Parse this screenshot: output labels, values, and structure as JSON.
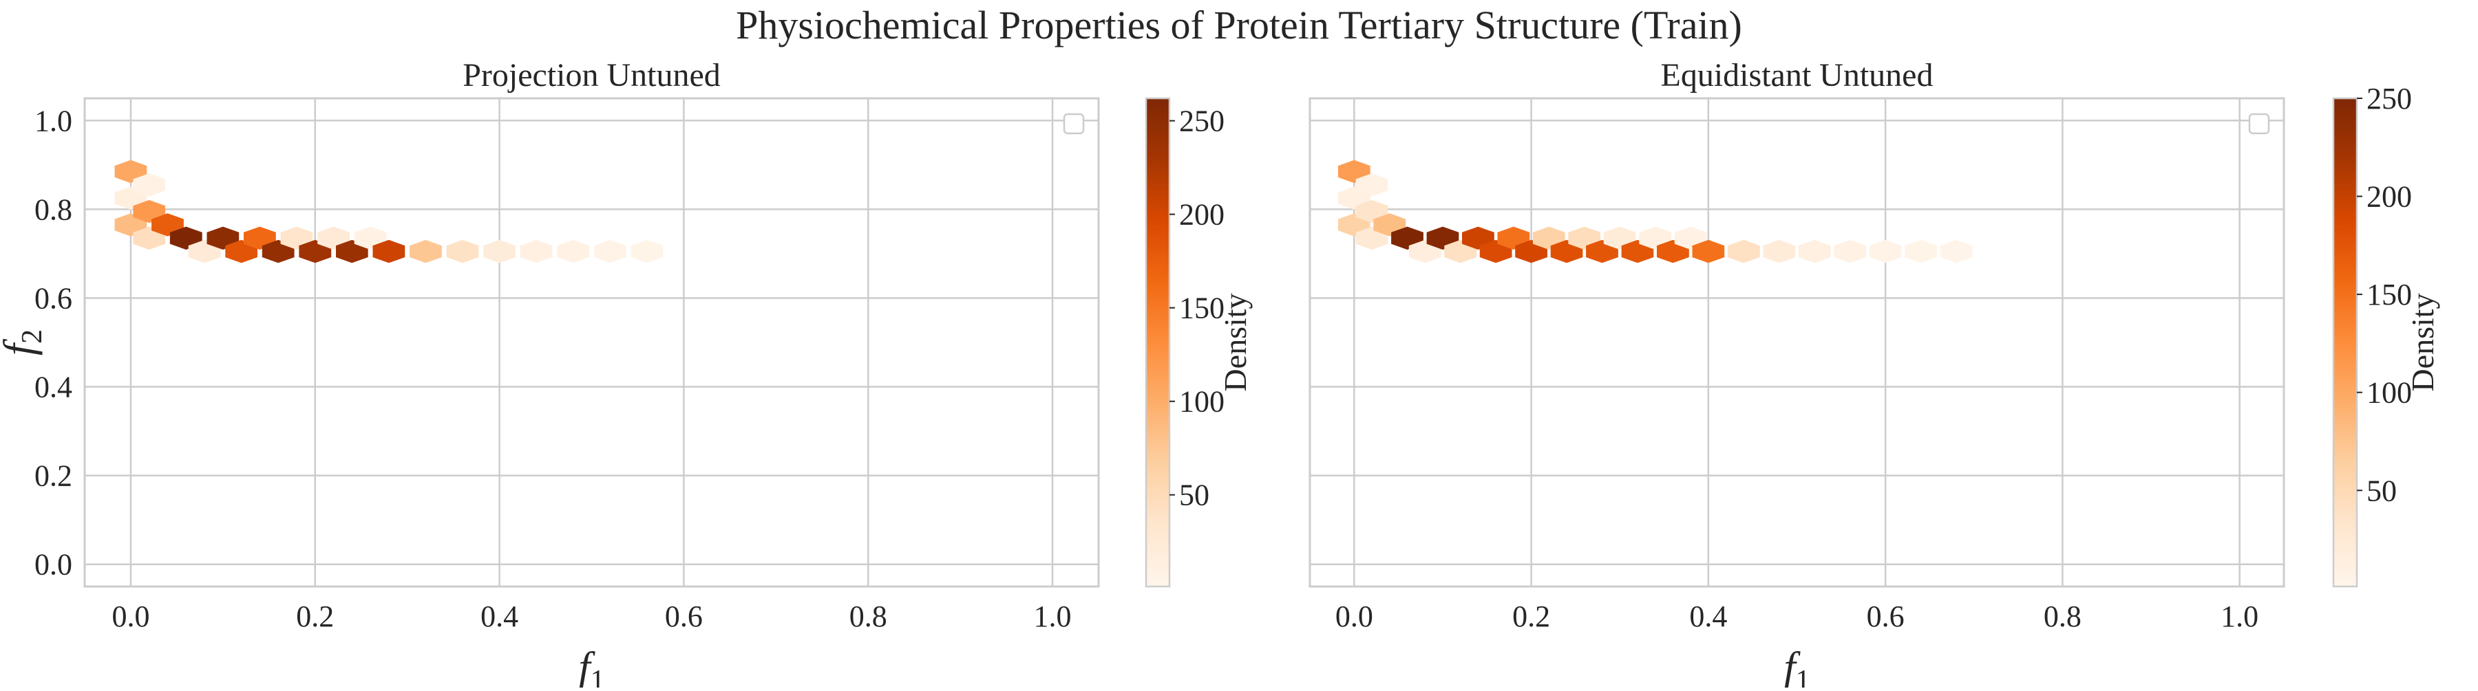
{
  "figure": {
    "title": "Physiochemical Properties of Protein Tertiary Structure (Train)"
  },
  "chart_data": [
    {
      "type": "heatmap",
      "subtype": "hexbin",
      "title": "Projection Untuned",
      "xlabel": "f1",
      "ylabel": "f2",
      "xlim": [
        -0.05,
        1.05
      ],
      "ylim": [
        -0.05,
        1.05
      ],
      "xticks": [
        "0.0",
        "0.2",
        "0.4",
        "0.6",
        "0.8",
        "1.0"
      ],
      "yticks": [
        "0.0",
        "0.2",
        "0.4",
        "0.6",
        "0.8",
        "1.0"
      ],
      "grid": true,
      "legend": {
        "placement": "upper-right",
        "entries": []
      },
      "colormap": "Oranges",
      "colorbar": {
        "label": "Density",
        "range": [
          1,
          262
        ],
        "ticks": [
          "50",
          "100",
          "150",
          "200",
          "250"
        ]
      },
      "bins": [
        {
          "x": 0.0,
          "y": 0.885,
          "v": 105
        },
        {
          "x": 0.0,
          "y": 0.825,
          "v": 15
        },
        {
          "x": 0.0,
          "y": 0.765,
          "v": 85
        },
        {
          "x": 0.02,
          "y": 0.855,
          "v": 8
        },
        {
          "x": 0.02,
          "y": 0.795,
          "v": 120
        },
        {
          "x": 0.02,
          "y": 0.735,
          "v": 45
        },
        {
          "x": 0.04,
          "y": 0.765,
          "v": 175
        },
        {
          "x": 0.06,
          "y": 0.735,
          "v": 262
        },
        {
          "x": 0.08,
          "y": 0.705,
          "v": 25
        },
        {
          "x": 0.1,
          "y": 0.735,
          "v": 250
        },
        {
          "x": 0.12,
          "y": 0.705,
          "v": 185
        },
        {
          "x": 0.14,
          "y": 0.735,
          "v": 165
        },
        {
          "x": 0.16,
          "y": 0.705,
          "v": 245
        },
        {
          "x": 0.18,
          "y": 0.735,
          "v": 35
        },
        {
          "x": 0.2,
          "y": 0.705,
          "v": 235
        },
        {
          "x": 0.22,
          "y": 0.735,
          "v": 25
        },
        {
          "x": 0.24,
          "y": 0.705,
          "v": 240
        },
        {
          "x": 0.26,
          "y": 0.735,
          "v": 8
        },
        {
          "x": 0.28,
          "y": 0.705,
          "v": 205
        },
        {
          "x": 0.32,
          "y": 0.705,
          "v": 75
        },
        {
          "x": 0.36,
          "y": 0.705,
          "v": 40
        },
        {
          "x": 0.4,
          "y": 0.705,
          "v": 20
        },
        {
          "x": 0.44,
          "y": 0.705,
          "v": 12
        },
        {
          "x": 0.48,
          "y": 0.705,
          "v": 8
        },
        {
          "x": 0.52,
          "y": 0.705,
          "v": 6
        },
        {
          "x": 0.56,
          "y": 0.705,
          "v": 4
        }
      ]
    },
    {
      "type": "heatmap",
      "subtype": "hexbin",
      "title": "Equidistant Untuned",
      "xlabel": "f1",
      "ylabel": "",
      "xlim": [
        -0.05,
        1.05
      ],
      "ylim": [
        -0.05,
        1.05
      ],
      "xticks": [
        "0.0",
        "0.2",
        "0.4",
        "0.6",
        "0.8",
        "1.0"
      ],
      "yticks": [],
      "grid": true,
      "legend": {
        "placement": "upper-right",
        "entries": []
      },
      "colormap": "Oranges",
      "colorbar": {
        "label": "Density",
        "range": [
          1,
          250
        ],
        "ticks": [
          "50",
          "100",
          "150",
          "200",
          "250"
        ]
      },
      "bins": [
        {
          "x": 0.0,
          "y": 0.885,
          "v": 110
        },
        {
          "x": 0.0,
          "y": 0.825,
          "v": 12
        },
        {
          "x": 0.0,
          "y": 0.765,
          "v": 60
        },
        {
          "x": 0.02,
          "y": 0.855,
          "v": 10
        },
        {
          "x": 0.02,
          "y": 0.795,
          "v": 35
        },
        {
          "x": 0.02,
          "y": 0.735,
          "v": 25
        },
        {
          "x": 0.04,
          "y": 0.765,
          "v": 80
        },
        {
          "x": 0.06,
          "y": 0.735,
          "v": 250
        },
        {
          "x": 0.08,
          "y": 0.705,
          "v": 15
        },
        {
          "x": 0.1,
          "y": 0.735,
          "v": 245
        },
        {
          "x": 0.12,
          "y": 0.705,
          "v": 40
        },
        {
          "x": 0.14,
          "y": 0.735,
          "v": 195
        },
        {
          "x": 0.16,
          "y": 0.705,
          "v": 185
        },
        {
          "x": 0.18,
          "y": 0.735,
          "v": 150
        },
        {
          "x": 0.2,
          "y": 0.705,
          "v": 190
        },
        {
          "x": 0.22,
          "y": 0.735,
          "v": 60
        },
        {
          "x": 0.24,
          "y": 0.705,
          "v": 180
        },
        {
          "x": 0.26,
          "y": 0.735,
          "v": 45
        },
        {
          "x": 0.28,
          "y": 0.705,
          "v": 175
        },
        {
          "x": 0.3,
          "y": 0.735,
          "v": 20
        },
        {
          "x": 0.32,
          "y": 0.705,
          "v": 175
        },
        {
          "x": 0.34,
          "y": 0.735,
          "v": 12
        },
        {
          "x": 0.36,
          "y": 0.705,
          "v": 170
        },
        {
          "x": 0.38,
          "y": 0.735,
          "v": 8
        },
        {
          "x": 0.4,
          "y": 0.705,
          "v": 150
        },
        {
          "x": 0.44,
          "y": 0.705,
          "v": 40
        },
        {
          "x": 0.48,
          "y": 0.705,
          "v": 20
        },
        {
          "x": 0.52,
          "y": 0.705,
          "v": 12
        },
        {
          "x": 0.56,
          "y": 0.705,
          "v": 8
        },
        {
          "x": 0.6,
          "y": 0.705,
          "v": 5
        },
        {
          "x": 0.64,
          "y": 0.705,
          "v": 4
        },
        {
          "x": 0.68,
          "y": 0.705,
          "v": 3
        }
      ]
    }
  ]
}
